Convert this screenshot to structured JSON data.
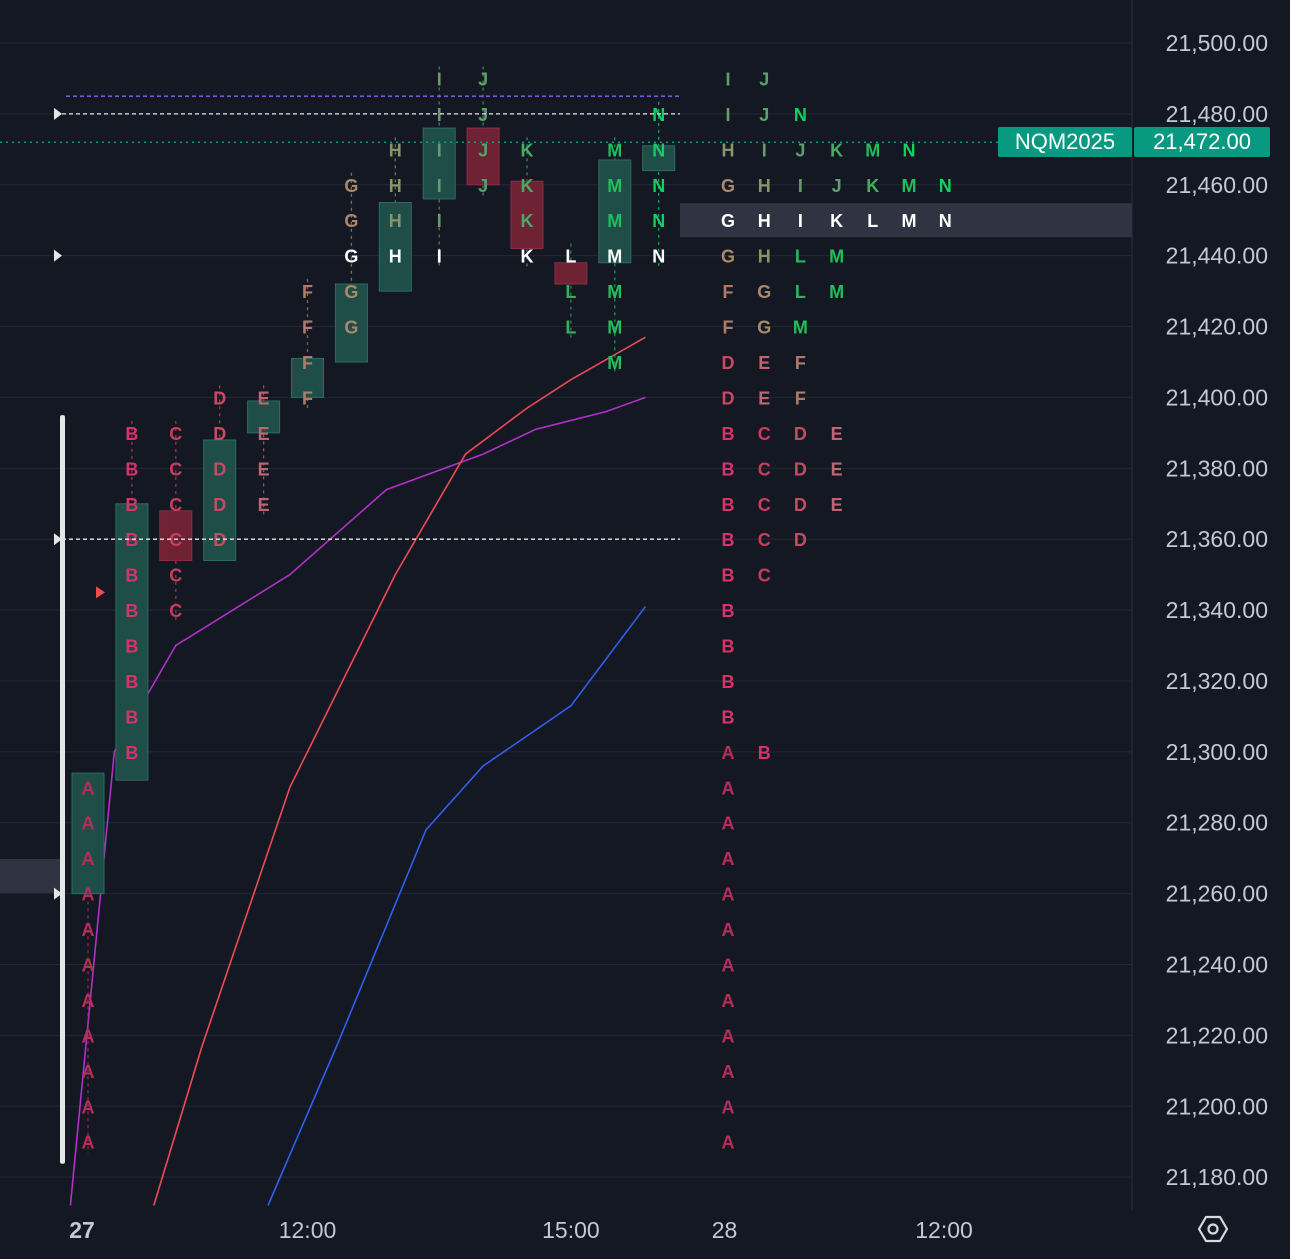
{
  "symbol": "NQM2025",
  "last_price": "21,472.00",
  "settings_icon": "gear-hexagon-icon",
  "colors": {
    "background": "#141823",
    "grid": "#222736",
    "axis_text": "#c4c8d2",
    "up_box": "#1f4d47",
    "down_box": "#6e2233",
    "last_price": "#089981",
    "vwap_line": "#b030c8",
    "red_line": "#f04a52",
    "blue_line": "#2f5ff0",
    "poc_line": "#e6e6e6",
    "value_area_line": "#8a5cf0",
    "letter_A": "#b82c5a",
    "letter_B": "#d8326a",
    "letter_C": "#c83c5c",
    "letter_D": "#c84a62",
    "letter_E": "#c06472",
    "letter_F": "#b07a6a",
    "letter_G": "#a88a6a",
    "letter_H": "#8a946a",
    "letter_I": "#6a9a6c",
    "letter_J": "#5aa06a",
    "letter_K": "#4aaa64",
    "letter_L": "#30b25e",
    "letter_M": "#1fc05a",
    "letter_N": "#12d060",
    "letter_current": "#ffffff"
  },
  "chart_data": {
    "type": "tpo_market_profile",
    "instrument": "NQM2025",
    "tick_size": 20,
    "y_axis_ticks": [
      "21,500.00",
      "21,480.00",
      "21,460.00",
      "21,440.00",
      "21,420.00",
      "21,400.00",
      "21,380.00",
      "21,360.00",
      "21,340.00",
      "21,320.00",
      "21,300.00",
      "21,280.00",
      "21,260.00",
      "21,240.00",
      "21,220.00",
      "21,200.00",
      "21,180.00"
    ],
    "y_axis_values": [
      21500,
      21480,
      21460,
      21440,
      21420,
      21400,
      21380,
      21360,
      21340,
      21320,
      21300,
      21280,
      21260,
      21240,
      21220,
      21200,
      21180
    ],
    "ylim": [
      21172,
      21508
    ],
    "x_axis_labels": [
      {
        "label": "27",
        "t": 0,
        "bold": true
      },
      {
        "label": "12:00",
        "t": 5
      },
      {
        "label": "15:00",
        "t": 11
      },
      {
        "label": "28",
        "t": 14.5
      },
      {
        "label": "12:00",
        "t": 19.5
      }
    ],
    "last_price": 21472,
    "session_day_27": {
      "periods": [
        {
          "letter": "A",
          "low": 21190,
          "high": 21290,
          "candle": {
            "dir": "up",
            "open": 21260,
            "close": 21294
          }
        },
        {
          "letter": "B",
          "low": 21300,
          "high": 21390,
          "candle": {
            "dir": "up",
            "open": 21292,
            "close": 21370
          }
        },
        {
          "letter": "C",
          "low": 21340,
          "high": 21390,
          "candle": {
            "dir": "down",
            "open": 21368,
            "close": 21354
          }
        },
        {
          "letter": "D",
          "low": 21360,
          "high": 21400,
          "candle": {
            "dir": "up",
            "open": 21354,
            "close": 21388
          }
        },
        {
          "letter": "E",
          "low": 21370,
          "high": 21400,
          "candle": {
            "dir": "up",
            "open": 21390,
            "close": 21399
          }
        },
        {
          "letter": "F",
          "low": 21400,
          "high": 21430,
          "candle": {
            "dir": "up",
            "open": 21400,
            "close": 21411
          }
        },
        {
          "letter": "G",
          "low": 21420,
          "high": 21460,
          "candle": {
            "dir": "up",
            "open": 21410,
            "close": 21432
          }
        },
        {
          "letter": "H",
          "low": 21440,
          "high": 21470,
          "candle": {
            "dir": "up",
            "open": 21430,
            "close": 21455
          }
        },
        {
          "letter": "I",
          "low": 21440,
          "high": 21490,
          "candle": {
            "dir": "up",
            "open": 21456,
            "close": 21476
          }
        },
        {
          "letter": "J",
          "low": 21460,
          "high": 21490,
          "candle": {
            "dir": "down",
            "open": 21476,
            "close": 21460
          }
        },
        {
          "letter": "K",
          "low": 21440,
          "high": 21470,
          "candle": {
            "dir": "down",
            "open": 21461,
            "close": 21442
          }
        },
        {
          "letter": "L",
          "low": 21420,
          "high": 21440,
          "candle": {
            "dir": "down",
            "open": 21438,
            "close": 21432
          }
        },
        {
          "letter": "M",
          "low": 21410,
          "high": 21470,
          "candle": {
            "dir": "up",
            "open": 21438,
            "close": 21467
          }
        },
        {
          "letter": "N",
          "low": 21440,
          "high": 21480,
          "candle": {
            "dir": "up",
            "open": 21464,
            "close": 21471
          }
        }
      ],
      "poc": 21440,
      "value_area_high": 21480,
      "value_area_low": 21360,
      "upper_band": 21485,
      "value_area_bar": {
        "low": 21190,
        "high": 21395
      }
    },
    "session_day_28": {
      "profile_rows": [
        {
          "price": 21490,
          "letters": "IJ"
        },
        {
          "price": 21480,
          "letters": "IJN"
        },
        {
          "price": 21470,
          "letters": "HIJKMN"
        },
        {
          "price": 21460,
          "letters": "GHIJKMN"
        },
        {
          "price": 21450,
          "letters": "GHIKLMN"
        },
        {
          "price": 21440,
          "letters": "GHLM"
        },
        {
          "price": 21430,
          "letters": "FGLM"
        },
        {
          "price": 21420,
          "letters": "FGM"
        },
        {
          "price": 21410,
          "letters": "DEF"
        },
        {
          "price": 21400,
          "letters": "DEF"
        },
        {
          "price": 21390,
          "letters": "BCDE"
        },
        {
          "price": 21380,
          "letters": "BCDE"
        },
        {
          "price": 21370,
          "letters": "BCDE"
        },
        {
          "price": 21360,
          "letters": "BCD"
        },
        {
          "price": 21350,
          "letters": "BC"
        },
        {
          "price": 21340,
          "letters": "B"
        },
        {
          "price": 21330,
          "letters": "B"
        },
        {
          "price": 21320,
          "letters": "B"
        },
        {
          "price": 21310,
          "letters": "B"
        },
        {
          "price": 21300,
          "letters": "AB"
        },
        {
          "price": 21290,
          "letters": "A"
        },
        {
          "price": 21280,
          "letters": "A"
        },
        {
          "price": 21270,
          "letters": "A"
        },
        {
          "price": 21260,
          "letters": "A"
        },
        {
          "price": 21250,
          "letters": "A"
        },
        {
          "price": 21240,
          "letters": "A"
        },
        {
          "price": 21230,
          "letters": "A"
        },
        {
          "price": 21220,
          "letters": "A"
        },
        {
          "price": 21210,
          "letters": "A"
        },
        {
          "price": 21200,
          "letters": "A"
        },
        {
          "price": 21190,
          "letters": "A"
        }
      ],
      "poc": 21450
    },
    "series": [
      {
        "color": "#b030c8",
        "points": [
          [
            -0.4,
            21172
          ],
          [
            0.6,
            21300
          ],
          [
            2,
            21330
          ],
          [
            4.6,
            21350
          ],
          [
            6.8,
            21374
          ],
          [
            9,
            21384
          ],
          [
            10.2,
            21391
          ],
          [
            11.8,
            21396
          ],
          [
            12.7,
            21400
          ]
        ]
      },
      {
        "color": "#f04a52",
        "points": [
          [
            1.5,
            21172
          ],
          [
            2.6,
            21217
          ],
          [
            4.6,
            21290
          ],
          [
            7,
            21350
          ],
          [
            8.6,
            21384
          ],
          [
            10,
            21397
          ],
          [
            11,
            21405
          ],
          [
            12.7,
            21417
          ]
        ]
      },
      {
        "color": "#2f5ff0",
        "points": [
          [
            4.1,
            21172
          ],
          [
            5.7,
            21218
          ],
          [
            7.7,
            21278
          ],
          [
            9,
            21296
          ],
          [
            11,
            21313
          ],
          [
            12.7,
            21341
          ]
        ]
      }
    ]
  }
}
